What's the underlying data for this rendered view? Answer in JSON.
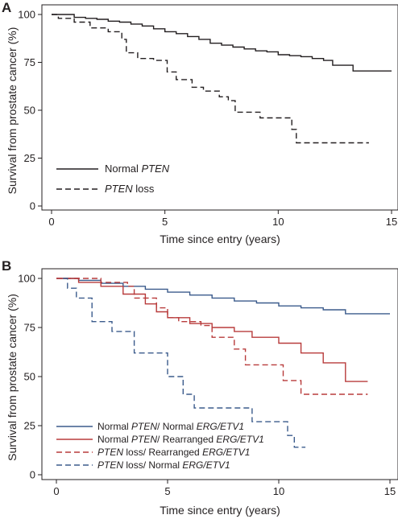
{
  "chart_data": [
    {
      "panel": "A",
      "type": "line",
      "xlabel": "Time since entry (years)",
      "ylabel": "Survival from prostate cancer (%)",
      "xlim": [
        0,
        15
      ],
      "ylim": [
        0,
        100
      ],
      "xticks": [
        0,
        5,
        10,
        15
      ],
      "yticks": [
        0,
        25,
        50,
        75,
        100
      ],
      "grid": false,
      "legend_position": "bottom-left",
      "series": [
        {
          "legend": [
            {
              "text": "Normal "
            },
            {
              "text": "PTEN",
              "italic": true
            }
          ],
          "color": "#231f20",
          "dash": "solid",
          "points": [
            [
              0,
              100
            ],
            [
              0.6,
              100
            ],
            [
              1,
              98.5
            ],
            [
              1.5,
              98
            ],
            [
              2,
              97.5
            ],
            [
              2.5,
              96.5
            ],
            [
              3,
              96
            ],
            [
              3.5,
              95
            ],
            [
              4,
              94
            ],
            [
              4.5,
              92.5
            ],
            [
              5,
              91
            ],
            [
              5.5,
              90
            ],
            [
              6,
              88.5
            ],
            [
              6.5,
              87
            ],
            [
              7,
              85
            ],
            [
              7.5,
              84
            ],
            [
              8,
              83
            ],
            [
              8.5,
              82
            ],
            [
              9,
              81
            ],
            [
              9.5,
              80.5
            ],
            [
              10,
              79
            ],
            [
              10.5,
              78.5
            ],
            [
              11,
              78
            ],
            [
              11.5,
              77
            ],
            [
              12,
              76
            ],
            [
              12.4,
              73.5
            ],
            [
              13,
              73.5
            ],
            [
              13.3,
              70.5
            ],
            [
              15,
              70.5
            ]
          ]
        },
        {
          "legend": [
            {
              "text": "PTEN",
              "italic": true
            },
            {
              "text": " loss"
            }
          ],
          "color": "#231f20",
          "dash": "7,4",
          "points": [
            [
              0,
              100
            ],
            [
              0.3,
              98
            ],
            [
              1,
              96
            ],
            [
              1.7,
              93
            ],
            [
              2.5,
              91
            ],
            [
              3.1,
              87
            ],
            [
              3.3,
              80
            ],
            [
              3.8,
              77
            ],
            [
              4.5,
              76
            ],
            [
              5.1,
              70
            ],
            [
              5.5,
              66
            ],
            [
              6.2,
              62
            ],
            [
              6.7,
              60
            ],
            [
              7.4,
              57
            ],
            [
              7.8,
              55
            ],
            [
              8.1,
              49
            ],
            [
              8.8,
              49
            ],
            [
              9.2,
              46
            ],
            [
              10.2,
              46
            ],
            [
              10.6,
              40
            ],
            [
              10.8,
              33
            ],
            [
              14,
              33
            ]
          ]
        }
      ]
    },
    {
      "panel": "B",
      "type": "line",
      "xlabel": "Time since entry (years)",
      "ylabel": "Survival from prostate cancer (%)",
      "xlim": [
        0,
        15
      ],
      "ylim": [
        0,
        100
      ],
      "xticks": [
        0,
        5,
        10,
        15
      ],
      "yticks": [
        0,
        25,
        50,
        75,
        100
      ],
      "grid": false,
      "legend_position": "bottom-left",
      "series": [
        {
          "legend": [
            {
              "text": "Normal "
            },
            {
              "text": "PTEN",
              "italic": true
            },
            {
              "text": "/ Normal "
            },
            {
              "text": "ERG/ETV1",
              "italic": true
            }
          ],
          "color": "#3b5b8c",
          "dash": "solid",
          "points": [
            [
              0,
              100
            ],
            [
              1,
              99
            ],
            [
              2,
              97.5
            ],
            [
              3,
              96
            ],
            [
              4,
              94.5
            ],
            [
              5,
              93
            ],
            [
              6,
              91.5
            ],
            [
              7,
              90
            ],
            [
              8,
              88.5
            ],
            [
              9,
              87.5
            ],
            [
              10,
              86
            ],
            [
              11,
              85
            ],
            [
              12,
              84
            ],
            [
              13,
              82
            ],
            [
              15,
              82
            ]
          ]
        },
        {
          "legend": [
            {
              "text": "Normal "
            },
            {
              "text": "PTEN",
              "italic": true
            },
            {
              "text": "/ Rearranged "
            },
            {
              "text": "ERG/ETV1",
              "italic": true
            }
          ],
          "color": "#b83b3b",
          "dash": "solid",
          "points": [
            [
              0,
              100
            ],
            [
              1,
              98
            ],
            [
              2,
              96
            ],
            [
              3,
              92
            ],
            [
              4,
              87
            ],
            [
              4.5,
              83
            ],
            [
              5,
              80
            ],
            [
              6,
              77
            ],
            [
              7,
              75
            ],
            [
              8,
              73
            ],
            [
              8.8,
              70
            ],
            [
              10,
              67
            ],
            [
              11,
              62
            ],
            [
              12,
              57
            ],
            [
              13,
              47.5
            ],
            [
              14,
              47.5
            ]
          ]
        },
        {
          "legend": [
            {
              "text": "PTEN",
              "italic": true
            },
            {
              "text": " loss/ Rearranged "
            },
            {
              "text": "ERG/ETV1",
              "italic": true
            }
          ],
          "color": "#b83b3b",
          "dash": "7,4",
          "points": [
            [
              0,
              100
            ],
            [
              1.2,
              100
            ],
            [
              2,
              98
            ],
            [
              3.2,
              96
            ],
            [
              3.5,
              90
            ],
            [
              4.5,
              85
            ],
            [
              5,
              80
            ],
            [
              5.5,
              78
            ],
            [
              6.5,
              76
            ],
            [
              7,
              70
            ],
            [
              8,
              64
            ],
            [
              8.5,
              56
            ],
            [
              9.5,
              56
            ],
            [
              10.2,
              48
            ],
            [
              11,
              41
            ],
            [
              14,
              41
            ]
          ]
        },
        {
          "legend": [
            {
              "text": "PTEN",
              "italic": true
            },
            {
              "text": " loss/ Normal "
            },
            {
              "text": "ERG/ETV1",
              "italic": true
            }
          ],
          "color": "#3b5b8c",
          "dash": "7,4",
          "points": [
            [
              0.3,
              100
            ],
            [
              0.5,
              95
            ],
            [
              0.9,
              90
            ],
            [
              1.6,
              78
            ],
            [
              2.5,
              73
            ],
            [
              3.5,
              62
            ],
            [
              5,
              50
            ],
            [
              5.7,
              41
            ],
            [
              6.2,
              34
            ],
            [
              8.8,
              27
            ],
            [
              10.4,
              20
            ],
            [
              10.7,
              14
            ],
            [
              11.2,
              14
            ]
          ]
        }
      ]
    }
  ]
}
